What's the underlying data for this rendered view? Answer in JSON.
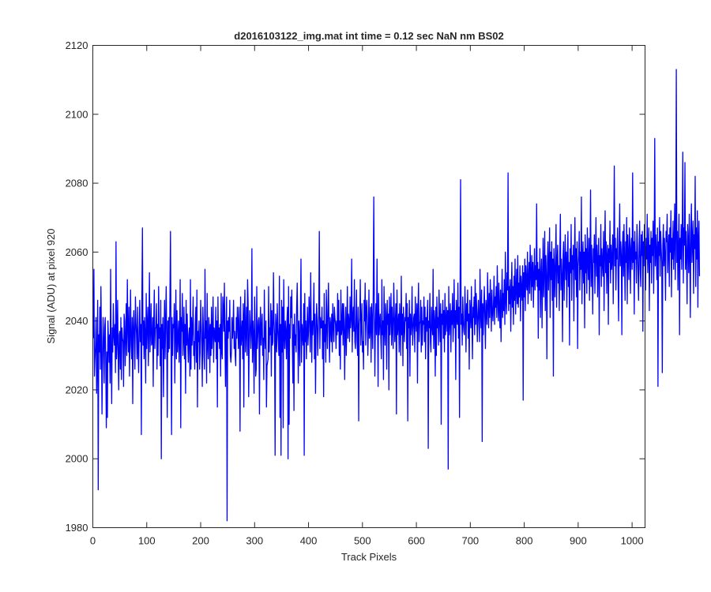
{
  "chart_data": {
    "type": "line",
    "title": "d2016103122_img.mat int time = 0.12 sec  NaN nm BS02",
    "xlabel": "Track Pixels",
    "ylabel": "Signal (ADU) at pixel 920",
    "xlim": [
      0,
      1024
    ],
    "ylim": [
      1980,
      2120
    ],
    "x_ticks": [
      0,
      100,
      200,
      300,
      400,
      500,
      600,
      700,
      800,
      900,
      1000
    ],
    "y_ticks": [
      1980,
      2000,
      2020,
      2040,
      2060,
      2080,
      2100,
      2120
    ],
    "grid": false,
    "series": [
      {
        "color": "#0000ff",
        "x_start": 1,
        "x_step": 1,
        "values": [
          2035,
          2055,
          2024,
          2029,
          2033,
          2041,
          2019,
          2028,
          2046,
          1991,
          2036,
          2031,
          2044,
          2026,
          2050,
          2035,
          2013,
          2029,
          2041,
          2034,
          2022,
          2038,
          2041,
          2027,
          2009,
          2031,
          2012,
          2040,
          2035,
          2028,
          2036,
          2022,
          2055,
          2030,
          2016,
          2038,
          2031,
          2045,
          2036,
          2033,
          2039,
          2025,
          2063,
          2029,
          2034,
          2046,
          2030,
          2020,
          2036,
          2037,
          2026,
          2041,
          2023,
          2038,
          2035,
          2034,
          2021,
          2042,
          2040,
          2027,
          2035,
          2045,
          2030,
          2052,
          2038,
          2031,
          2044,
          2024,
          2036,
          2049,
          2033,
          2029,
          2041,
          2016,
          2038,
          2043,
          2035,
          2026,
          2047,
          2040,
          2036,
          2029,
          2044,
          2031,
          2025,
          2038,
          2046,
          2034,
          2039,
          2007,
          2047,
          2067,
          2033,
          2040,
          2029,
          2041,
          2036,
          2022,
          2048,
          2032,
          2039,
          2044,
          2027,
          2038,
          2054,
          2031,
          2037,
          2045,
          2033,
          2034,
          2041,
          2021,
          2040,
          2049,
          2032,
          2038,
          2038,
          2045,
          2026,
          2039,
          2030,
          2050,
          2035,
          2038,
          2027,
          2046,
          2000,
          2039,
          2032,
          2041,
          2018,
          2035,
          2046,
          2029,
          2039,
          2050,
          2036,
          2012,
          2040,
          2031,
          2041,
          2032,
          2047,
          2066,
          2034,
          2007,
          2041,
          2030,
          2039,
          2038,
          2045,
          2022,
          2037,
          2049,
          2029,
          2043,
          2031,
          2035,
          2040,
          2028,
          2036,
          2052,
          2009,
          2041,
          2037,
          2048,
          2030,
          2035,
          2044,
          2029,
          2039,
          2019,
          2046,
          2033,
          2042,
          2034,
          2028,
          2036,
          2038,
          2024,
          2052,
          2026,
          2041,
          2033,
          2038,
          2047,
          2030,
          2034,
          2026,
          2039,
          2044,
          2028,
          2049,
          2015,
          2037,
          2034,
          2040,
          2026,
          2031,
          2046,
          2039,
          2033,
          2021,
          2044,
          2038,
          2030,
          2026,
          2055,
          2035,
          2040,
          2022,
          2048,
          2033,
          2029,
          2041,
          2038,
          2025,
          2039,
          2030,
          2044,
          2032,
          2037,
          2047,
          2028,
          2038,
          2036,
          2034,
          2044,
          2029,
          2040,
          2015,
          2047,
          2034,
          2038,
          2032,
          2039,
          2024,
          2048,
          2031,
          2029,
          2047,
          2043,
          2037,
          2051,
          2034,
          2021,
          2037,
          2047,
          1982,
          2040,
          2035,
          2041,
          2037,
          2046,
          2030,
          2028,
          2031,
          2041,
          2035,
          2038,
          2046,
          2032,
          2037,
          2030,
          2027,
          2041,
          2035,
          2044,
          2039,
          2032,
          2044,
          2037,
          2008,
          2047,
          2033,
          2036,
          2040,
          2029,
          2045,
          2015,
          2042,
          2049,
          2031,
          2037,
          2044,
          2030,
          2052,
          2045,
          2018,
          2034,
          2043,
          2039,
          2032,
          2037,
          2061,
          2028,
          2040,
          2036,
          2019,
          2047,
          2039,
          2024,
          2026,
          2050,
          2032,
          2036,
          2040,
          2041,
          2013,
          2038,
          2044,
          2033,
          2038,
          2042,
          2030,
          2035,
          2023,
          2049,
          2036,
          2032,
          2040,
          2015,
          2027,
          2028,
          2029,
          2050,
          2031,
          2038,
          2036,
          2045,
          2024,
          2043,
          2033,
          2034,
          2054,
          2040,
          2036,
          2001,
          2042,
          2038,
          2031,
          2045,
          2038,
          2034,
          2030,
          2053,
          2012,
          2039,
          2001,
          2046,
          2031,
          2044,
          2009,
          2052,
          2037,
          2032,
          2040,
          2037,
          2029,
          2040,
          2044,
          2000,
          2050,
          2010,
          2039,
          2035,
          2047,
          2041,
          2049,
          2033,
          2022,
          2039,
          2014,
          2042,
          2033,
          2036,
          2031,
          2044,
          2051,
          2039,
          2022,
          2040,
          2036,
          2027,
          2042,
          2058,
          2028,
          2039,
          2036,
          2033,
          2045,
          2001,
          2048,
          2034,
          2040,
          2029,
          2037,
          2044,
          2033,
          2037,
          2047,
          2042,
          2031,
          2054,
          2039,
          2028,
          2040,
          2036,
          2041,
          2051,
          2029,
          2042,
          2019,
          2036,
          2045,
          2040,
          2030,
          2037,
          2042,
          2066,
          2032,
          2041,
          2038,
          2038,
          2044,
          2029,
          2040,
          2018,
          2048,
          2034,
          2039,
          2028,
          2049,
          2039,
          2032,
          2044,
          2051,
          2037,
          2028,
          2041,
          2039,
          2034,
          2042,
          2031,
          2045,
          2039,
          2034,
          2044,
          2041,
          2039,
          2032,
          2040,
          2036,
          2048,
          2037,
          2046,
          2030,
          2040,
          2026,
          2049,
          2036,
          2038,
          2045,
          2033,
          2045,
          2040,
          2023,
          2037,
          2044,
          2030,
          2039,
          2050,
          2035,
          2042,
          2040,
          2034,
          2047,
          2038,
          2041,
          2058,
          2031,
          2041,
          2044,
          2037,
          2052,
          2034,
          2032,
          2040,
          2049,
          2034,
          2030,
          2044,
          2011,
          2039,
          2041,
          2052,
          2033,
          2039,
          2045,
          2031,
          2034,
          2026,
          2046,
          2040,
          2051,
          2033,
          2043,
          2046,
          2040,
          2030,
          2037,
          2049,
          2035,
          2038,
          2044,
          2028,
          2045,
          2040,
          2032,
          2049,
          2076,
          2043,
          2024,
          2039,
          2045,
          2036,
          2058,
          2040,
          2021,
          2048,
          2036,
          2040,
          2042,
          2035,
          2029,
          2052,
          2036,
          2040,
          2023,
          2050,
          2038,
          2033,
          2045,
          2041,
          2026,
          2046,
          2039,
          2042,
          2020,
          2047,
          2036,
          2041,
          2048,
          2033,
          2044,
          2038,
          2032,
          2051,
          2043,
          2034,
          2040,
          2045,
          2013,
          2049,
          2036,
          2039,
          2042,
          2031,
          2045,
          2040,
          2030,
          2053,
          2036,
          2042,
          2027,
          2044,
          2039,
          2034,
          2041,
          2040,
          2048,
          2032,
          2045,
          2011,
          2041,
          2038,
          2046,
          2024,
          2042,
          2036,
          2039,
          2050,
          2033,
          2037,
          2041,
          2042,
          2031,
          2047,
          2040,
          2037,
          2045,
          2022,
          2043,
          2051,
          2034,
          2039,
          2040,
          2046,
          2031,
          2044,
          2033,
          2040,
          2039,
          2047,
          2034,
          2044,
          2029,
          2041,
          2037,
          2042,
          2046,
          2003,
          2040,
          2038,
          2048,
          2034,
          2031,
          2044,
          2039,
          2036,
          2055,
          2032,
          2043,
          2040,
          2024,
          2044,
          2030,
          2047,
          2038,
          2041,
          2033,
          2049,
          2041,
          2034,
          2045,
          2010,
          2042,
          2039,
          2046,
          2035,
          2043,
          2031,
          2048,
          2036,
          2040,
          2044,
          2037,
          2043,
          1997,
          2050,
          2036,
          2040,
          2045,
          2031,
          2043,
          2039,
          2048,
          2034,
          2040,
          2052,
          2038,
          2043,
          2023,
          2046,
          2041,
          2039,
          2051,
          2035,
          2044,
          2012,
          2049,
          2081,
          2039,
          2042,
          2033,
          2047,
          2040,
          2037,
          2036,
          2050,
          2042,
          2031,
          2045,
          2040,
          2049,
          2035,
          2042,
          2026,
          2046,
          2043,
          2038,
          2050,
          2040,
          2029,
          2044,
          2041,
          2047,
          2036,
          2052,
          2039,
          2048,
          2043,
          2034,
          2041,
          2046,
          2040,
          2034,
          2055,
          2042,
          2038,
          2049,
          2005,
          2045,
          2036,
          2044,
          2050,
          2041,
          2032,
          2046,
          2043,
          2039,
          2054,
          2045,
          2038,
          2048,
          2041,
          2052,
          2046,
          2037,
          2049,
          2043,
          2040,
          2045,
          2053,
          2039,
          2047,
          2044,
          2050,
          2041,
          2056,
          2046,
          2040,
          2051,
          2044,
          2038,
          2049,
          2034,
          2045,
          2055,
          2041,
          2048,
          2043,
          2052,
          2039,
          2060,
          2046,
          2042,
          2054,
          2049,
          2083,
          2043,
          2050,
          2045,
          2052,
          2037,
          2048,
          2057,
          2044,
          2050,
          2039,
          2053,
          2046,
          2058,
          2042,
          2049,
          2055,
          2045,
          2059,
          2044,
          2051,
          2047,
          2056,
          2040,
          2053,
          2049,
          2046,
          2056,
          2017,
          2054,
          2047,
          2058,
          2043,
          2056,
          2051,
          2049,
          2060,
          2045,
          2052,
          2057,
          2048,
          2062,
          2054,
          2046,
          2059,
          2050,
          2057,
          2044,
          2053,
          2061,
          2049,
          2056,
          2052,
          2074,
          2050,
          2057,
          2035,
          2055,
          2049,
          2061,
          2041,
          2053,
          2058,
          2038,
          2052,
          2064,
          2047,
          2055,
          2066,
          2043,
          2059,
          2053,
          2029,
          2057,
          2063,
          2049,
          2056,
          2067,
          2041,
          2060,
          2052,
          2063,
          2046,
          2058,
          2024,
          2061,
          2055,
          2047,
          2059,
          2068,
          2044,
          2057,
          2062,
          2051,
          2056,
          2043,
          2060,
          2071,
          2049,
          2058,
          2053,
          2034,
          2059,
          2063,
          2046,
          2057,
          2065,
          2052,
          2060,
          2044,
          2058,
          2066,
          2050,
          2057,
          2033,
          2061,
          2054,
          2068,
          2046,
          2059,
          2055,
          2062,
          2040,
          2058,
          2070,
          2052,
          2061,
          2047,
          2063,
          2032,
          2056,
          2059,
          2066,
          2049,
          2060,
          2055,
          2076,
          2045,
          2058,
          2063,
          2051,
          2060,
          2038,
          2065,
          2054,
          2061,
          2048,
          2067,
          2057,
          2052,
          2064,
          2046,
          2059,
          2078,
          2050,
          2062,
          2055,
          2042,
          2061,
          2057,
          2065,
          2048,
          2059,
          2070,
          2053,
          2062,
          2047,
          2058,
          2064,
          2036,
          2059,
          2056,
          2068,
          2050,
          2061,
          2057,
          2053,
          2066,
          2043,
          2060,
          2072,
          2054,
          2063,
          2048,
          2059,
          2062,
          2039,
          2061,
          2057,
          2069,
          2051,
          2062,
          2055,
          2058,
          2065,
          2045,
          2063,
          2085,
          2056,
          2064,
          2049,
          2061,
          2058,
          2067,
          2052,
          2040,
          2062,
          2074,
          2056,
          2063,
          2059,
          2036,
          2061,
          2066,
          2053,
          2068,
          2058,
          2046,
          2063,
          2057,
          2070,
          2045,
          2065,
          2059,
          2052,
          2067,
          2062,
          2048,
          2061,
          2064,
          2055,
          2083,
          2057,
          2063,
          2042,
          2066,
          2058,
          2060,
          2051,
          2068,
          2061,
          2054,
          2046,
          2062,
          2069,
          2055,
          2050,
          2065,
          2059,
          2066,
          2037,
          2063,
          2056,
          2068,
          2061,
          2049,
          2064,
          2058,
          2071,
          2054,
          2060,
          2067,
          2043,
          2062,
          2057,
          2066,
          2051,
          2064,
          2059,
          2069,
          2048,
          2062,
          2093,
          2056,
          2065,
          2060,
          2052,
          2067,
          2021,
          2063,
          2059,
          2070,
          2053,
          2066,
          2061,
          2057,
          2025,
          2062,
          2068,
          2056,
          2064,
          2059,
          2046,
          2066,
          2063,
          2071,
          2054,
          2061,
          2065,
          2050,
          2067,
          2060,
          2072,
          2047,
          2064,
          2058,
          2069,
          2055,
          2063,
          2074,
          2052,
          2065,
          2113,
          2057,
          2066,
          2049,
          2062,
          2071,
          2036,
          2064,
          2058,
          2068,
          2055,
          2065,
          2089,
          2051,
          2067,
          2062,
          2086,
          2055,
          2066,
          2059,
          2045,
          2068,
          2063,
          2054,
          2071,
          2060,
          2041,
          2066,
          2074,
          2057,
          2063,
          2069,
          2048,
          2065,
          2061,
          2082,
          2050,
          2067,
          2058,
          2072,
          2044,
          2064,
          2069,
          2053
        ]
      }
    ]
  }
}
